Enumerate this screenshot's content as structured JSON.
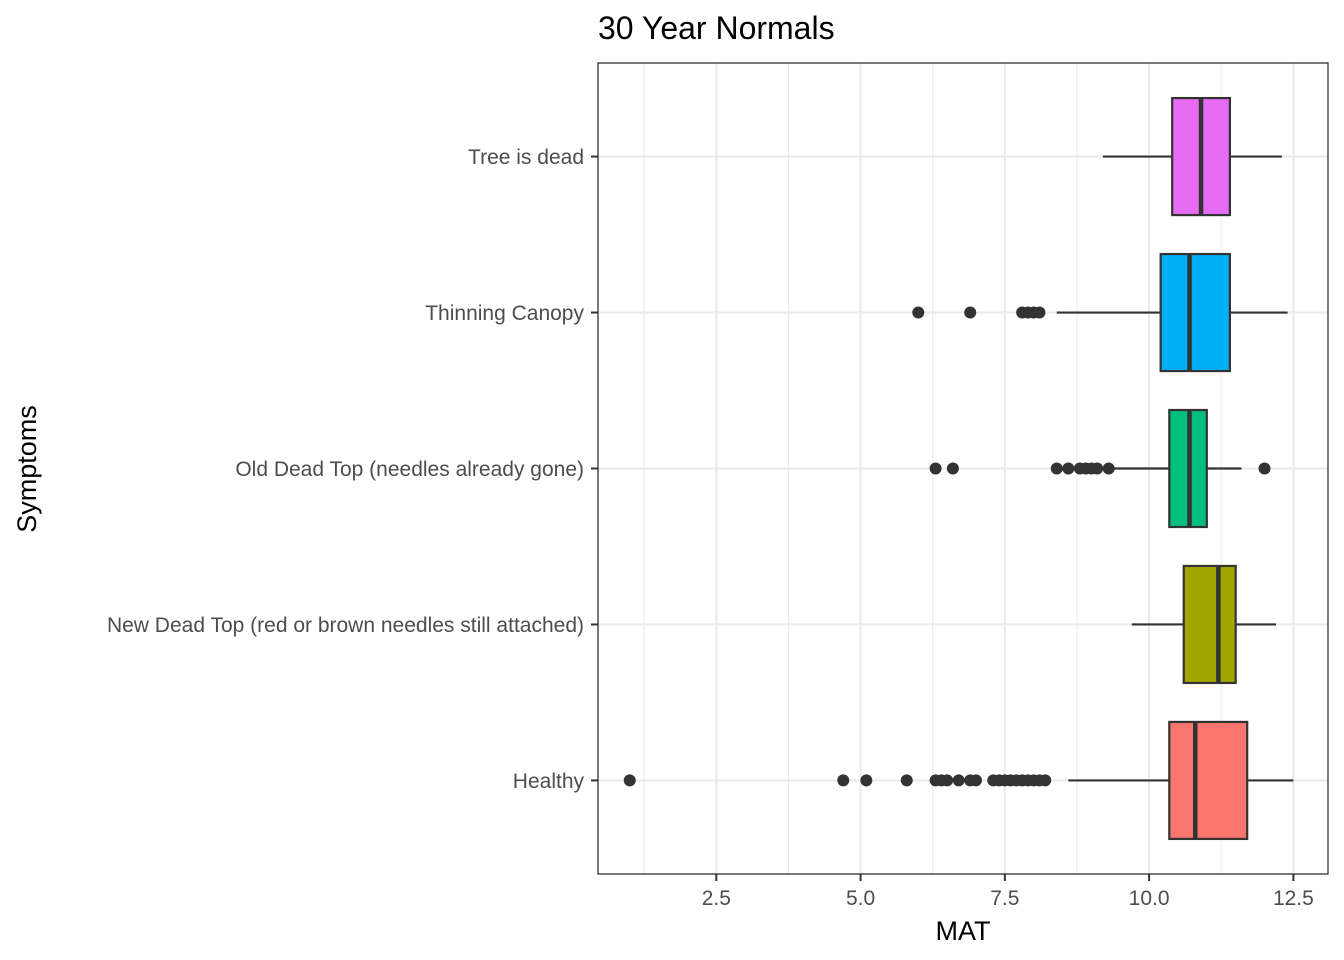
{
  "chart_data": {
    "type": "boxplot",
    "orientation": "horizontal",
    "title": "30 Year Normals",
    "xlabel": "MAT",
    "ylabel": "Symptoms",
    "xlim": [
      0.45,
      13.1
    ],
    "xticks": [
      2.5,
      5.0,
      7.5,
      10.0,
      12.5
    ],
    "xtick_labels": [
      "2.5",
      "5.0",
      "7.5",
      "10.0",
      "12.5"
    ],
    "grid": true,
    "legend": "none",
    "categories": [
      "Healthy",
      "New Dead Top (red or brown needles still attached)",
      "Old Dead Top (needles already gone)",
      "Thinning Canopy",
      "Tree is dead"
    ],
    "boxes": [
      {
        "category": "Healthy",
        "color": "#F8766D",
        "whisker_low": 8.6,
        "q1": 10.35,
        "median": 10.8,
        "q3": 11.7,
        "whisker_high": 12.5,
        "outliers": [
          1.0,
          4.7,
          5.1,
          5.8,
          6.3,
          6.4,
          6.5,
          6.7,
          6.9,
          7.0,
          7.3,
          7.4,
          7.5,
          7.6,
          7.7,
          7.8,
          7.9,
          8.0,
          8.1,
          8.2
        ]
      },
      {
        "category": "New Dead Top (red or brown needles still attached)",
        "color": "#A3A500",
        "whisker_low": 9.7,
        "q1": 10.6,
        "median": 11.2,
        "q3": 11.5,
        "whisker_high": 12.2,
        "outliers": []
      },
      {
        "category": "Old Dead Top (needles already gone)",
        "color": "#00BF7D",
        "whisker_low": 9.4,
        "q1": 10.35,
        "median": 10.7,
        "q3": 11.0,
        "whisker_high": 11.6,
        "outliers": [
          6.3,
          6.6,
          8.4,
          8.6,
          8.8,
          8.9,
          9.0,
          9.1,
          9.3,
          12.0
        ]
      },
      {
        "category": "Thinning Canopy",
        "color": "#00B0F6",
        "whisker_low": 8.4,
        "q1": 10.2,
        "median": 10.7,
        "q3": 11.4,
        "whisker_high": 12.4,
        "outliers": [
          6.0,
          6.9,
          7.8,
          7.9,
          8.0,
          8.1
        ]
      },
      {
        "category": "Tree is dead",
        "color": "#E76BF3",
        "whisker_low": 9.2,
        "q1": 10.4,
        "median": 10.9,
        "q3": 11.4,
        "whisker_high": 12.3,
        "outliers": []
      }
    ]
  }
}
